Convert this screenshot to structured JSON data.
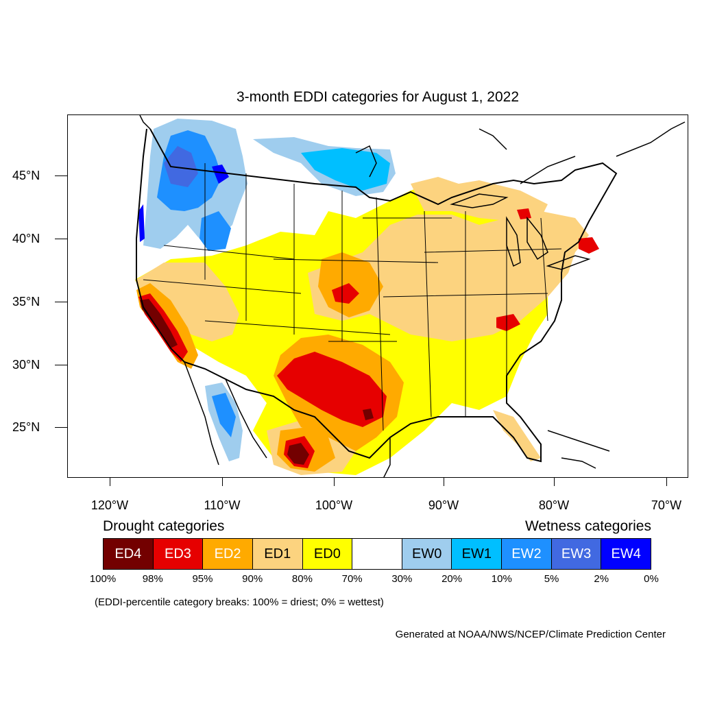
{
  "title": "3-month EDDI categories for August 1, 2022",
  "lat_labels": [
    "45°N",
    "40°N",
    "35°N",
    "30°N",
    "25°N"
  ],
  "lon_labels": [
    "120°W",
    "110°W",
    "100°W",
    "90°W",
    "80°W",
    "70°W"
  ],
  "legend": {
    "drought_heading": "Drought categories",
    "wetness_heading": "Wetness categories",
    "categories": [
      {
        "label": "ED4",
        "color": "#730000",
        "text_color": "#ffffff"
      },
      {
        "label": "ED3",
        "color": "#e60000",
        "text_color": "#ffffff"
      },
      {
        "label": "ED2",
        "color": "#ffaa00",
        "text_color": "#ffffff"
      },
      {
        "label": "ED1",
        "color": "#fcd37f",
        "text_color": "#000000"
      },
      {
        "label": "ED0",
        "color": "#ffff00",
        "text_color": "#000000"
      },
      {
        "label": "",
        "color": "#ffffff",
        "text_color": "#000000"
      },
      {
        "label": "EW0",
        "color": "#9fcdee",
        "text_color": "#000000"
      },
      {
        "label": "EW1",
        "color": "#00bfff",
        "text_color": "#000000"
      },
      {
        "label": "EW2",
        "color": "#1e90ff",
        "text_color": "#ffffff"
      },
      {
        "label": "EW3",
        "color": "#4169e1",
        "text_color": "#ffffff"
      },
      {
        "label": "EW4",
        "color": "#0000ff",
        "text_color": "#ffffff"
      }
    ],
    "percentiles": [
      "100%",
      "98%",
      "95%",
      "90%",
      "80%",
      "70%",
      "30%",
      "20%",
      "10%",
      "5%",
      "2%",
      "0%"
    ]
  },
  "note": "(EDDI-percentile category breaks: 100% = driest; 0% = wettest)",
  "credit": "Generated at NOAA/NWS/NCEP/Climate Prediction Center"
}
